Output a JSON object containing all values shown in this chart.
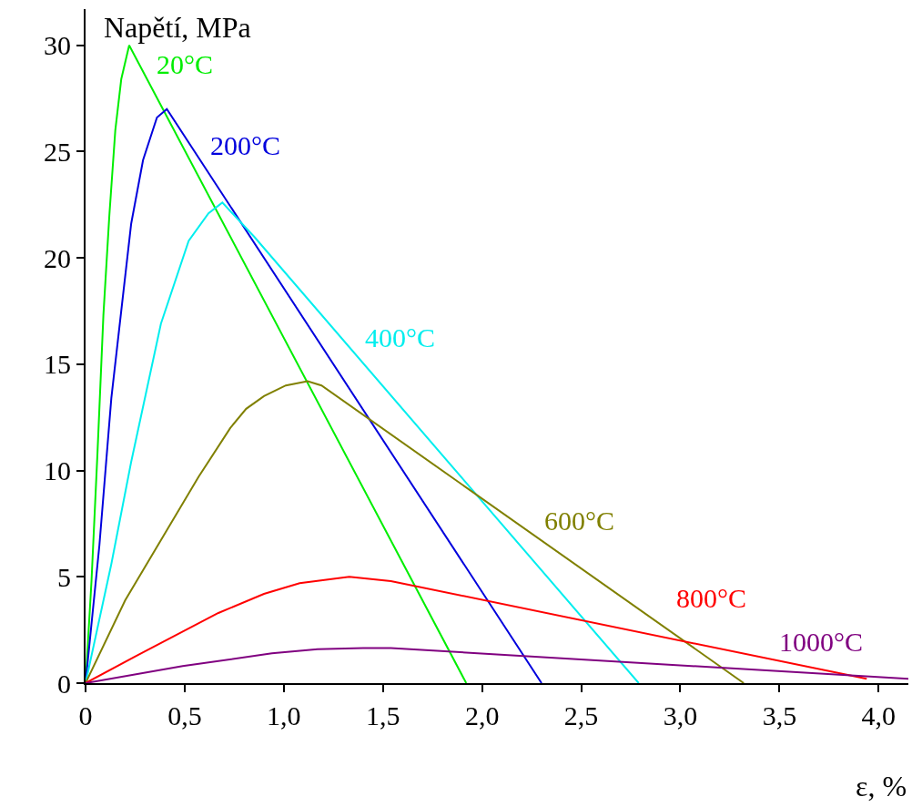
{
  "chart_data": {
    "type": "line",
    "xlabel": "ε, %",
    "ylabel": "Napětí, MPa",
    "xlim": [
      0,
      4.15
    ],
    "ylim": [
      0,
      31.7
    ],
    "xticks": [
      0,
      {
        "value": 0.5,
        "label": "0,5"
      },
      {
        "value": 1.0,
        "label": "1,0"
      },
      {
        "value": 1.5,
        "label": "1,5"
      },
      {
        "value": 2.0,
        "label": "2,0"
      },
      {
        "value": 2.5,
        "label": "2,5"
      },
      {
        "value": 3.0,
        "label": "3,0"
      },
      {
        "value": 3.5,
        "label": "3,5"
      },
      {
        "value": 4.0,
        "label": "4,0"
      }
    ],
    "yticks": [
      0,
      5,
      10,
      15,
      20,
      25,
      30
    ],
    "grid": false,
    "legend": false,
    "marker": "none",
    "line_style": "solid",
    "series": [
      {
        "name": "20°C",
        "color": "#00ee00",
        "x": [
          0,
          0.03,
          0.06,
          0.09,
          0.12,
          0.15,
          0.18,
          0.22,
          1.92
        ],
        "values": [
          0,
          4.8,
          10.8,
          17.3,
          22.0,
          26.0,
          28.4,
          30.0,
          0
        ]
      },
      {
        "name": "200°C",
        "color": "#0000dd",
        "x": [
          0,
          0.07,
          0.13,
          0.18,
          0.23,
          0.29,
          0.36,
          0.41,
          2.3
        ],
        "values": [
          0,
          6.5,
          13.4,
          17.5,
          21.6,
          24.6,
          26.6,
          27.0,
          0
        ]
      },
      {
        "name": "400°C",
        "color": "#00eeee",
        "x": [
          0,
          0.13,
          0.23,
          0.38,
          0.52,
          0.62,
          0.69,
          0.85,
          2.79
        ],
        "values": [
          0,
          5.6,
          10.4,
          16.9,
          20.8,
          22.1,
          22.6,
          21.0,
          0
        ]
      },
      {
        "name": "600°C",
        "color": "#808000",
        "x": [
          0,
          0.2,
          0.57,
          0.73,
          0.81,
          0.9,
          1.01,
          1.12,
          1.19,
          3.32
        ],
        "values": [
          0,
          3.9,
          9.7,
          12.0,
          12.9,
          13.5,
          14.0,
          14.2,
          14.0,
          0
        ]
      },
      {
        "name": "800°C",
        "color": "#ff0000",
        "x": [
          0,
          0.26,
          0.67,
          0.9,
          1.08,
          1.33,
          1.54,
          3.94
        ],
        "values": [
          0,
          1.3,
          3.3,
          4.2,
          4.7,
          5.0,
          4.8,
          0.2
        ]
      },
      {
        "name": "1000°C",
        "color": "#800080",
        "x": [
          0,
          0.49,
          0.94,
          1.17,
          1.4,
          1.54,
          4.15
        ],
        "values": [
          0,
          0.8,
          1.4,
          1.6,
          1.65,
          1.65,
          0.2
        ]
      }
    ]
  }
}
